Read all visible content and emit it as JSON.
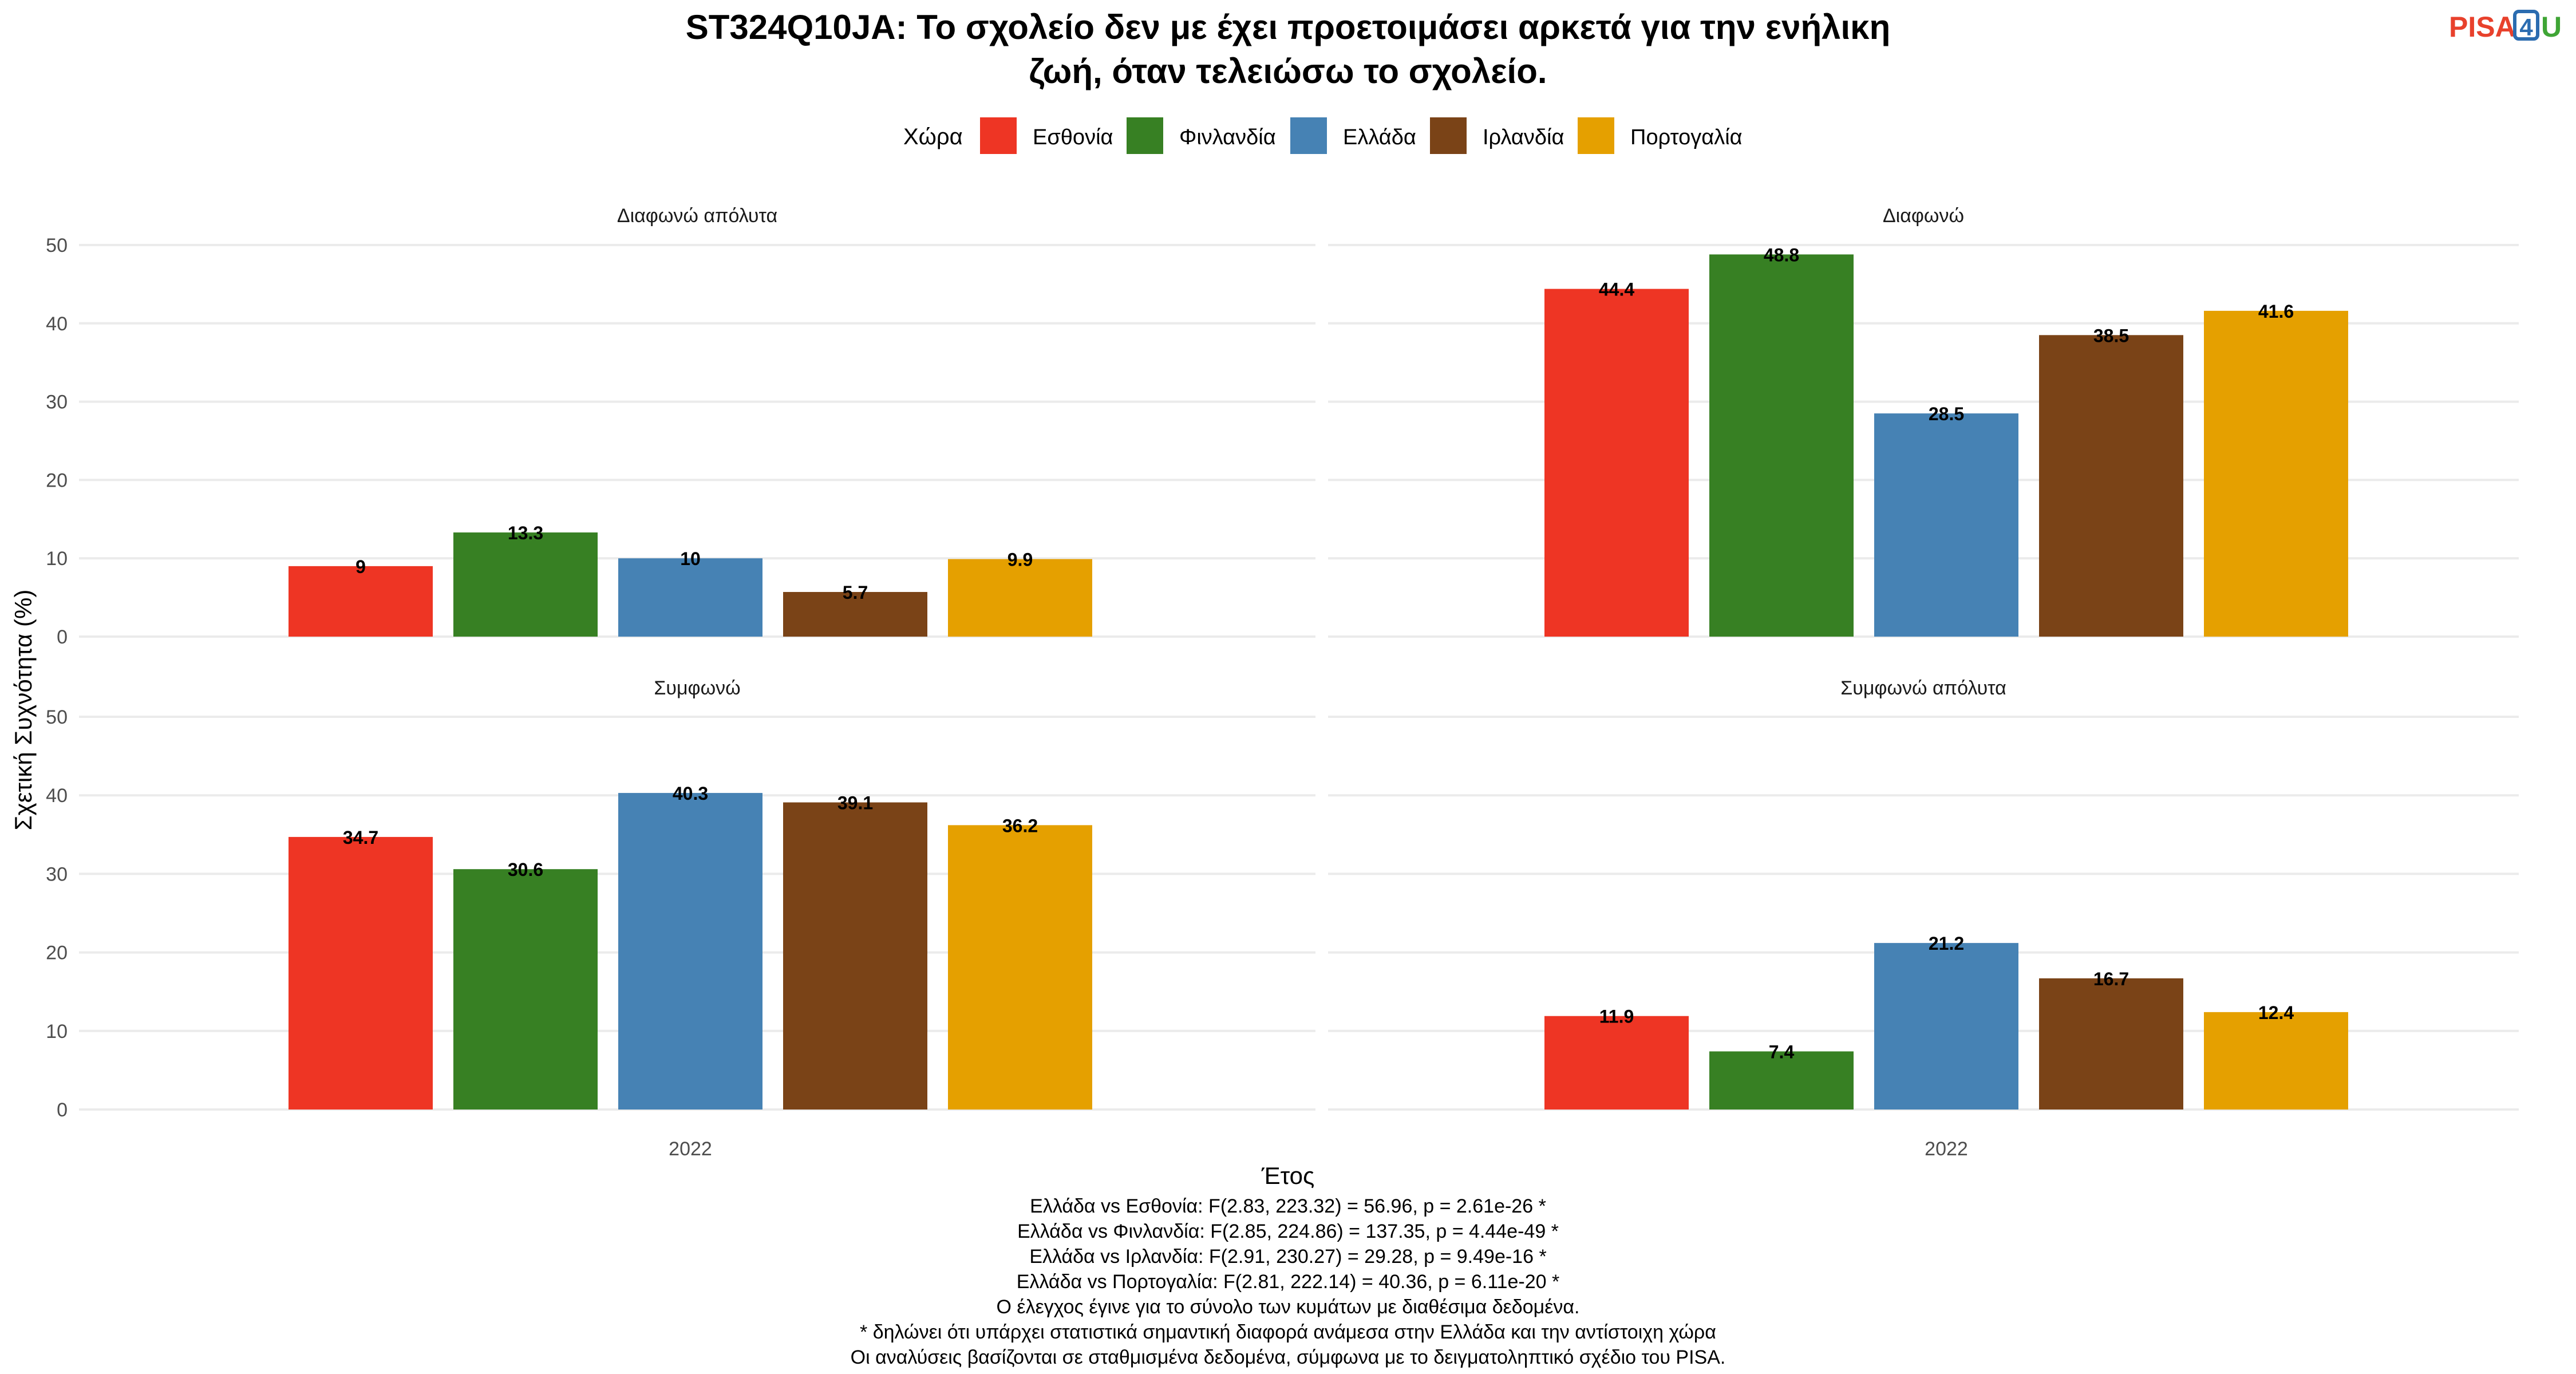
{
  "title_lines": [
    "ST324Q10JA: Το σχολείο δεν με έχει προετοιμάσει αρκετά για την ενήλικη",
    "ζωή, όταν τελειώσω το σχολείο."
  ],
  "logo": {
    "text_part1": "PISA",
    "text_part2": "4",
    "text_part3": "U",
    "colors": [
      "#e8412c",
      "#2b6cb0",
      "#3fa535"
    ]
  },
  "legend": {
    "title": "Χώρα",
    "items": [
      {
        "label": "Εσθονία",
        "color": "#EE3524"
      },
      {
        "label": "Φινλανδία",
        "color": "#378023"
      },
      {
        "label": "Ελλάδα",
        "color": "#4682B4"
      },
      {
        "label": "Ιρλανδία",
        "color": "#7A4317"
      },
      {
        "label": "Πορτογαλία",
        "color": "#E5A000"
      }
    ]
  },
  "axis": {
    "ylabel": "Σχετική Συχνότητα (%)",
    "xlabel": "Έτος",
    "yticks": [
      "0",
      "10",
      "20",
      "30",
      "40",
      "50"
    ]
  },
  "footnotes": [
    "Ελλάδα vs Εσθονία: F(2.83, 223.32) = 56.96, p = 2.61e-26 *",
    "Ελλάδα vs Φινλανδία: F(2.85, 224.86) = 137.35, p = 4.44e-49 *",
    "Ελλάδα vs Ιρλανδία: F(2.91, 230.27) = 29.28, p = 9.49e-16 *",
    "Ελλάδα vs Πορτογαλία: F(2.81, 222.14) = 40.36, p = 6.11e-20 *",
    "Ο έλεγχος έγινε για το σύνολο των κυμάτων με διαθέσιμα δεδομένα.",
    "* δηλώνει ότι υπάρχει στατιστικά σημαντική διαφορά ανάμεσα στην Ελλάδα και την αντίστοιχη χώρα",
    "Οι αναλύσεις βασίζονται σε σταθμισμένα δεδομένα, σύμφωνα με το δειγματοληπτικό σχέδιο του PISA."
  ],
  "chart_data": {
    "type": "bar",
    "ylim": [
      0,
      50
    ],
    "grid": true,
    "legend_position": "top",
    "x_category": "2022",
    "series_names": [
      "Εσθονία",
      "Φινλανδία",
      "Ελλάδα",
      "Ιρλανδία",
      "Πορτογαλία"
    ],
    "panels": [
      {
        "facet": "Διαφωνώ απόλυτα",
        "values": [
          9,
          13.3,
          10,
          5.7,
          9.9
        ],
        "labels": [
          "9",
          "13.3",
          "10",
          "5.7",
          "9.9"
        ]
      },
      {
        "facet": "Διαφωνώ",
        "values": [
          44.4,
          48.8,
          28.5,
          38.5,
          41.6
        ],
        "labels": [
          "44.4",
          "48.8",
          "28.5",
          "38.5",
          "41.6"
        ]
      },
      {
        "facet": "Συμφωνώ",
        "values": [
          34.7,
          30.6,
          40.3,
          39.1,
          36.2
        ],
        "labels": [
          "34.7",
          "30.6",
          "40.3",
          "39.1",
          "36.2"
        ]
      },
      {
        "facet": "Συμφωνώ απόλυτα",
        "values": [
          11.9,
          7.4,
          21.2,
          16.7,
          12.4
        ],
        "labels": [
          "11.9",
          "7.4",
          "21.2",
          "16.7",
          "12.4"
        ]
      }
    ]
  }
}
